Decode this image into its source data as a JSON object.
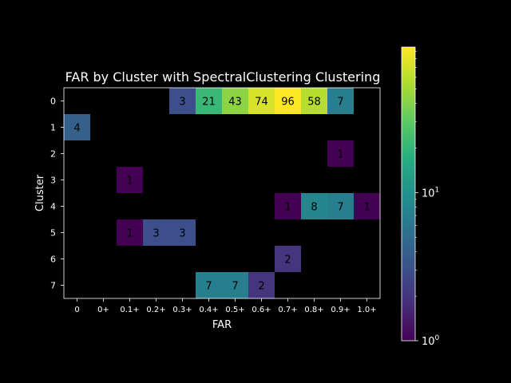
{
  "chart_data": {
    "type": "heatmap",
    "title": "FAR by Cluster with SpectralClustering Clustering",
    "xlabel": "FAR",
    "ylabel": "Cluster",
    "x_tick_labels": [
      "0",
      "0+",
      "0.1+",
      "0.2+",
      "0.3+",
      "0.4+",
      "0.5+",
      "0.6+",
      "0.7+",
      "0.8+",
      "0.9+",
      "1.0+"
    ],
    "y_tick_labels": [
      "0",
      "1",
      "2",
      "3",
      "4",
      "5",
      "6",
      "7"
    ],
    "colorbar": {
      "scale": "log",
      "min": 1,
      "max": 96,
      "ticks": [
        "10^0",
        "10^1"
      ],
      "colormap": "viridis"
    },
    "cells": [
      {
        "row": 0,
        "col": 4,
        "value": 3
      },
      {
        "row": 0,
        "col": 5,
        "value": 21
      },
      {
        "row": 0,
        "col": 6,
        "value": 43
      },
      {
        "row": 0,
        "col": 7,
        "value": 74
      },
      {
        "row": 0,
        "col": 8,
        "value": 96
      },
      {
        "row": 0,
        "col": 9,
        "value": 58
      },
      {
        "row": 0,
        "col": 10,
        "value": 7
      },
      {
        "row": 1,
        "col": 0,
        "value": 4
      },
      {
        "row": 2,
        "col": 10,
        "value": 1
      },
      {
        "row": 3,
        "col": 2,
        "value": 1
      },
      {
        "row": 4,
        "col": 8,
        "value": 1
      },
      {
        "row": 4,
        "col": 9,
        "value": 8
      },
      {
        "row": 4,
        "col": 10,
        "value": 7
      },
      {
        "row": 4,
        "col": 11,
        "value": 1
      },
      {
        "row": 5,
        "col": 2,
        "value": 1
      },
      {
        "row": 5,
        "col": 3,
        "value": 3
      },
      {
        "row": 5,
        "col": 4,
        "value": 3
      },
      {
        "row": 6,
        "col": 8,
        "value": 2
      },
      {
        "row": 7,
        "col": 5,
        "value": 7
      },
      {
        "row": 7,
        "col": 6,
        "value": 7
      },
      {
        "row": 7,
        "col": 7,
        "value": 2
      }
    ]
  }
}
